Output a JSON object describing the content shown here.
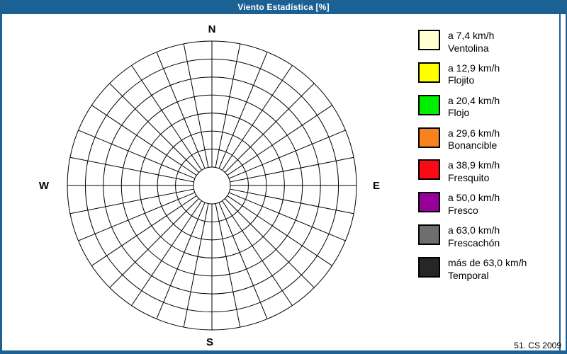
{
  "window": {
    "title": "Viento Estadística [%]"
  },
  "colors": {
    "frame": "#1C6194",
    "grid_line": "#000000",
    "background": "#FFFFFF"
  },
  "compass": {
    "north": "N",
    "south": "S",
    "east": "E",
    "west": "W"
  },
  "legend": {
    "items": [
      {
        "speed": "a 7,4 km/h",
        "name": "Ventolina",
        "color": "#FFFFD2"
      },
      {
        "speed": "a 12,9 km/h",
        "name": "Flojito",
        "color": "#FFFF00"
      },
      {
        "speed": "a 20,4 km/h",
        "name": "Flojo",
        "color": "#00EE00"
      },
      {
        "speed": "a 29,6 km/h",
        "name": "Bonancible",
        "color": "#F8821C"
      },
      {
        "speed": "a 38,9 km/h",
        "name": "Fresquito",
        "color": "#FA0A12"
      },
      {
        "speed": "a 50,0 km/h",
        "name": "Fresco",
        "color": "#990099"
      },
      {
        "speed": "a 63,0 km/h",
        "name": "Frescachón",
        "color": "#6E6E6E"
      },
      {
        "speed": "más de 63,0 km/h",
        "name": "Temporal",
        "color": "#262626"
      }
    ]
  },
  "footer": {
    "credit": "51. CS 2009"
  },
  "chart_data": {
    "type": "windrose",
    "title": "Viento Estadística [%]",
    "unit": "%",
    "sectors": 32,
    "rings": 8,
    "grid_color": "#000000",
    "direction_labels": [
      "N",
      "E",
      "S",
      "W"
    ],
    "radial_axis": {
      "tick_labels_visible": false,
      "grid": true
    },
    "legend_position": "right",
    "speed_bins": [
      {
        "label": "a 7,4 km/h",
        "name": "Ventolina",
        "color": "#FFFFD2"
      },
      {
        "label": "a 12,9 km/h",
        "name": "Flojito",
        "color": "#FFFF00"
      },
      {
        "label": "a 20,4 km/h",
        "name": "Flojo",
        "color": "#00EE00"
      },
      {
        "label": "a 29,6 km/h",
        "name": "Bonancible",
        "color": "#F8821C"
      },
      {
        "label": "a 38,9 km/h",
        "name": "Fresquito",
        "color": "#FA0A12"
      },
      {
        "label": "a 50,0 km/h",
        "name": "Fresco",
        "color": "#990099"
      },
      {
        "label": "a 63,0 km/h",
        "name": "Frescachón",
        "color": "#6E6E6E"
      },
      {
        "label": "más de 63,0 km/h",
        "name": "Temporal",
        "color": "#262626"
      }
    ],
    "series": [],
    "note": "Polar grid is rendered empty in the screenshot — no percentage values are plotted in any sector."
  }
}
